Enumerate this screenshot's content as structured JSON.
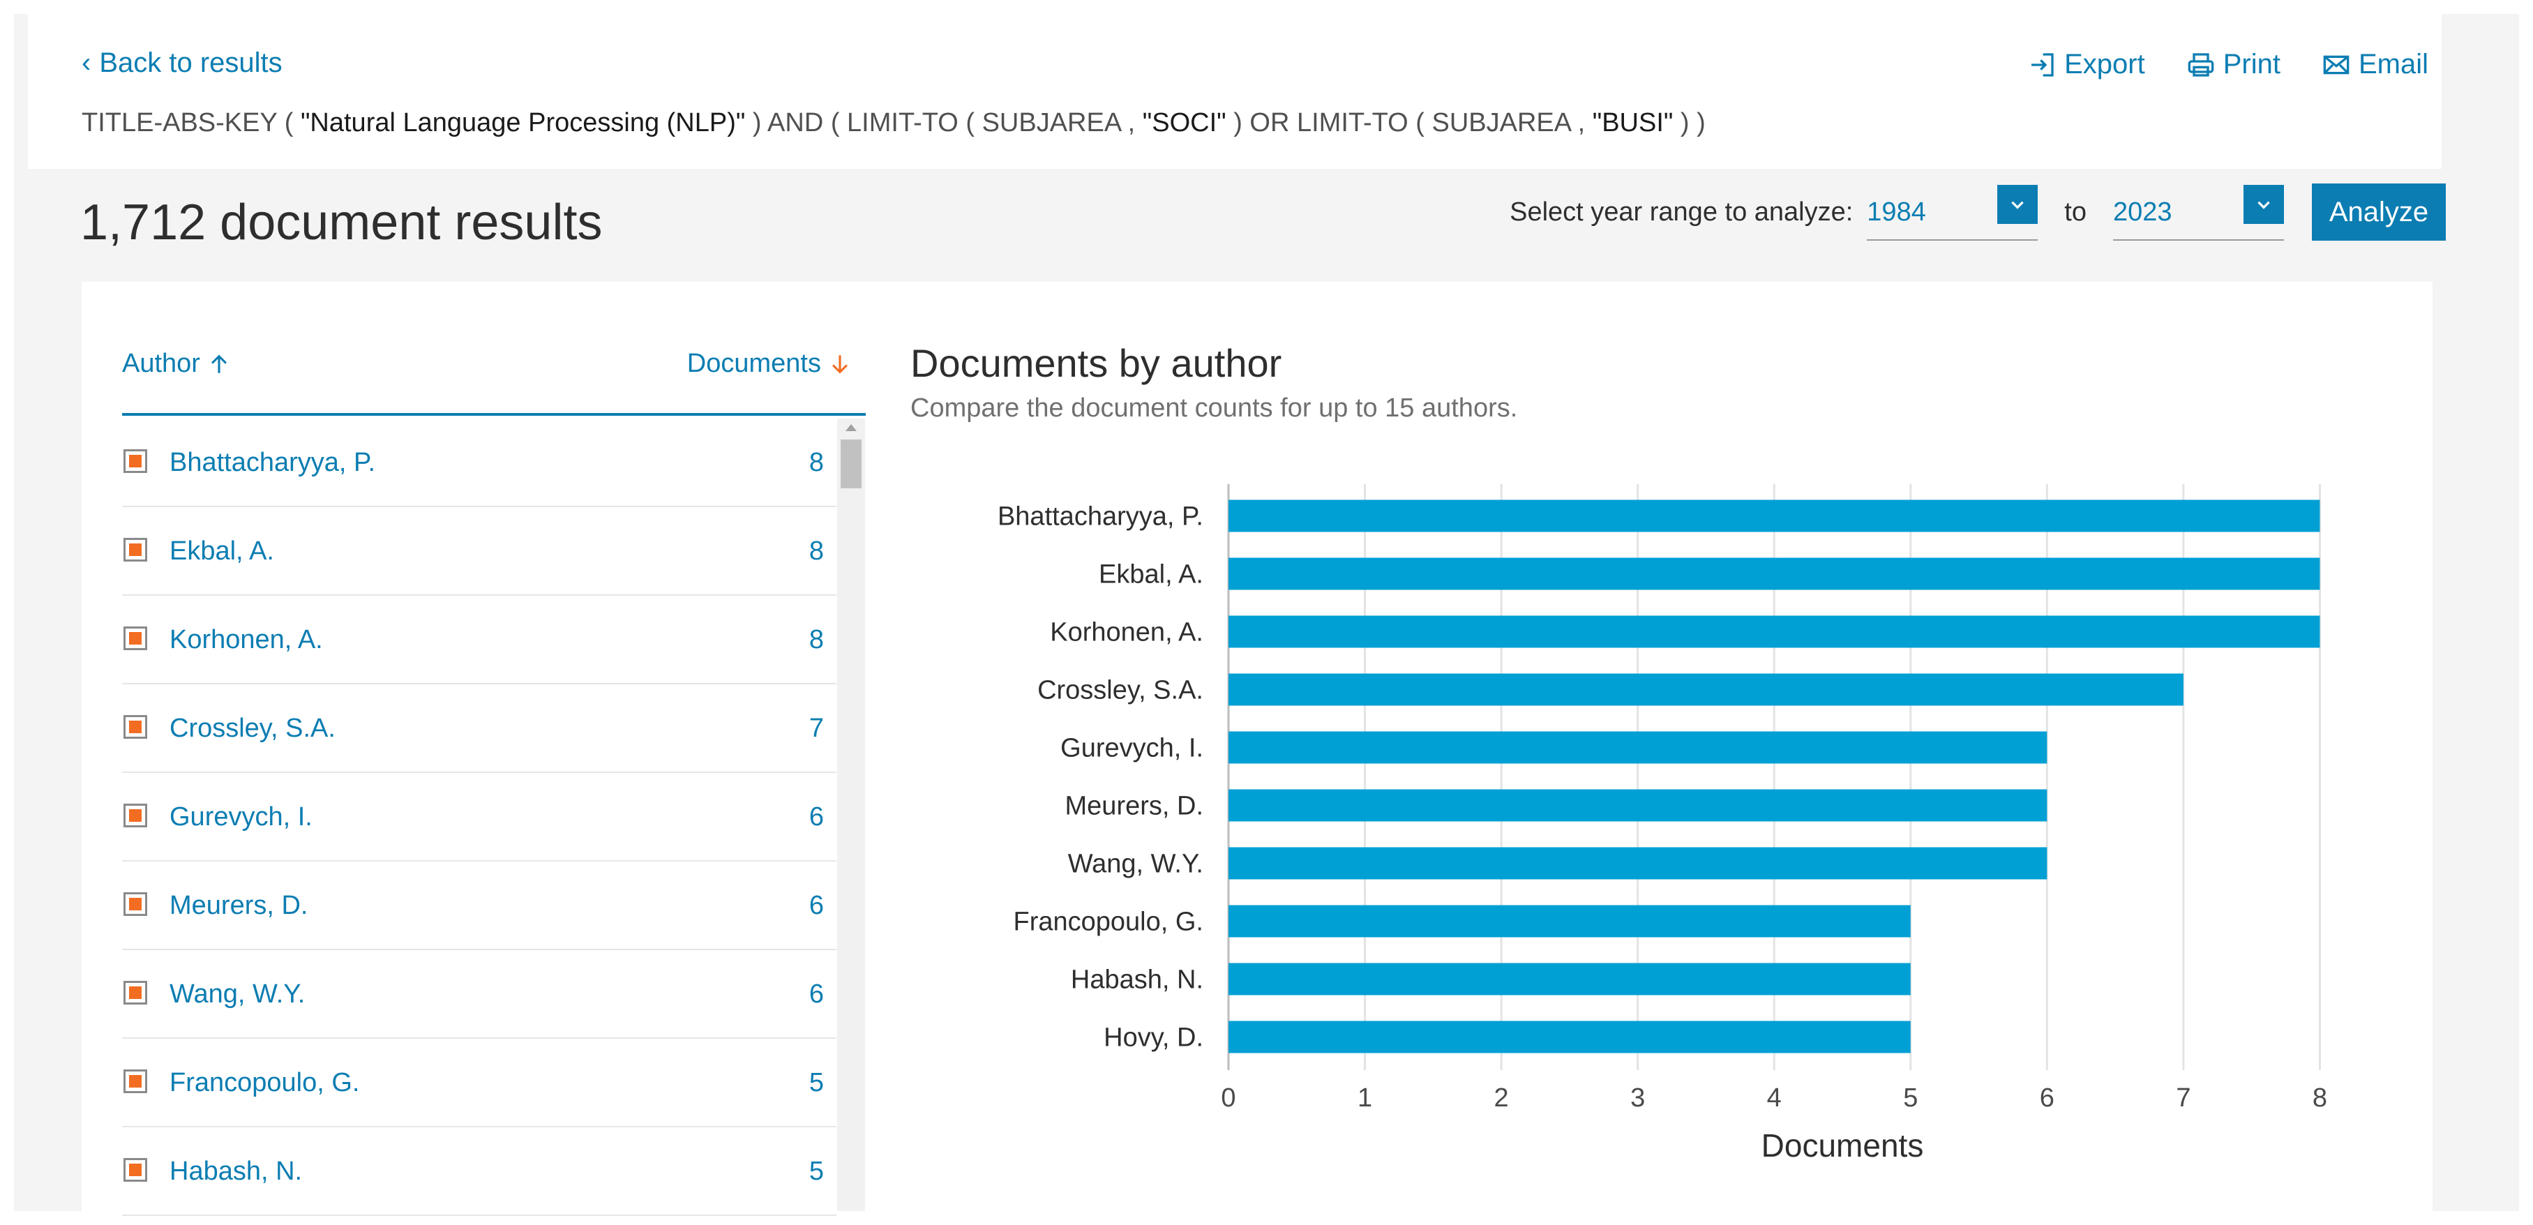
{
  "top": {
    "back_label": "Back to results",
    "actions": {
      "export": "Export",
      "print": "Print",
      "email": "Email"
    },
    "query": {
      "p1": "TITLE-ABS-KEY ( ",
      "s1": "\"Natural Language Processing (NLP)\"",
      "p2": " )  AND  ( LIMIT-TO ( SUBJAREA ,  ",
      "s2": "\"SOCI\"",
      "p3": " )  OR  LIMIT-TO ( SUBJAREA ,  ",
      "s3": "\"BUSI\"",
      "p4": " ) )"
    }
  },
  "results": {
    "count_text": "1,712 document results",
    "year_range_label": "Select year range to analyze:",
    "year_from": "1984",
    "to_label": "to",
    "year_to": "2023",
    "analyze_label": "Analyze"
  },
  "list": {
    "col_author": "Author",
    "col_documents": "Documents",
    "rows": [
      {
        "name": "Bhattacharyya, P.",
        "count": "8"
      },
      {
        "name": "Ekbal, A.",
        "count": "8"
      },
      {
        "name": "Korhonen, A.",
        "count": "8"
      },
      {
        "name": "Crossley, S.A.",
        "count": "7"
      },
      {
        "name": "Gurevych, I.",
        "count": "6"
      },
      {
        "name": "Meurers, D.",
        "count": "6"
      },
      {
        "name": "Wang, W.Y.",
        "count": "6"
      },
      {
        "name": "Francopoulo, G.",
        "count": "5"
      },
      {
        "name": "Habash, N.",
        "count": "5"
      }
    ]
  },
  "chart_header": {
    "title": "Documents by author",
    "subtitle": "Compare the document counts for up to 15 authors."
  },
  "colors": {
    "accent": "#0c7db2",
    "bar": "#009fd4",
    "checkbox": "#f26c21"
  },
  "chart_data": {
    "type": "bar",
    "orientation": "horizontal",
    "title": "Documents by author",
    "xlabel": "Documents",
    "ylabel": "",
    "categories": [
      "Bhattacharyya, P.",
      "Ekbal, A.",
      "Korhonen, A.",
      "Crossley, S.A.",
      "Gurevych, I.",
      "Meurers, D.",
      "Wang, W.Y.",
      "Francopoulo, G.",
      "Habash, N.",
      "Hovy, D."
    ],
    "values": [
      8,
      8,
      8,
      7,
      6,
      6,
      6,
      5,
      5,
      5
    ],
    "xlim": [
      0,
      9
    ],
    "xticks": [
      "0",
      "1",
      "2",
      "3",
      "4",
      "5",
      "6",
      "7",
      "8",
      "9"
    ],
    "grid": true
  }
}
